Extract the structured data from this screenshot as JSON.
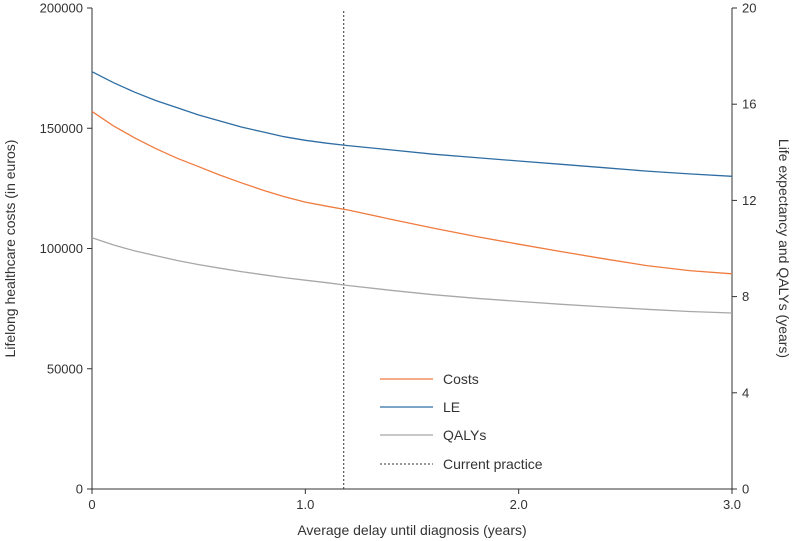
{
  "chart_data": {
    "type": "line",
    "title": "",
    "xlabel": "Average delay until diagnosis (years)",
    "ylabel_left": "Lifelong healthcare costs (in euros)",
    "ylabel_right": "Life expectancy and QALYs (years)",
    "xlim": [
      0,
      3.0
    ],
    "ylim_left": [
      0,
      200000
    ],
    "ylim_right": [
      0,
      20
    ],
    "x_ticks": [
      {
        "value": 0,
        "label": "0"
      },
      {
        "value": 1,
        "label": "1.0"
      },
      {
        "value": 2,
        "label": "2.0"
      },
      {
        "value": 3,
        "label": "3.0"
      }
    ],
    "y_left_ticks": [
      {
        "value": 0,
        "label": "0"
      },
      {
        "value": 50000,
        "label": "50000"
      },
      {
        "value": 100000,
        "label": "100000"
      },
      {
        "value": 150000,
        "label": "150000"
      },
      {
        "value": 200000,
        "label": "200000"
      }
    ],
    "y_right_ticks": [
      {
        "value": 0,
        "label": "0"
      },
      {
        "value": 4,
        "label": "4"
      },
      {
        "value": 8,
        "label": "8"
      },
      {
        "value": 12,
        "label": "12"
      },
      {
        "value": 16,
        "label": "16"
      },
      {
        "value": 20,
        "label": "20"
      }
    ],
    "grid": false,
    "legend_position": "bottom-center",
    "series": [
      {
        "name": "Costs",
        "axis": "left",
        "color": "#f07b3f",
        "x": [
          0,
          0.1,
          0.2,
          0.3,
          0.4,
          0.5,
          0.6,
          0.7,
          0.8,
          0.9,
          1.0,
          1.1,
          1.2,
          1.4,
          1.6,
          1.8,
          2.0,
          2.2,
          2.4,
          2.6,
          2.8,
          3.0
        ],
        "y": [
          157000,
          151000,
          146000,
          141500,
          137500,
          134000,
          130500,
          127300,
          124300,
          121600,
          119300,
          117600,
          116000,
          112200,
          108500,
          105000,
          101800,
          98700,
          95700,
          92900,
          90800,
          89500
        ]
      },
      {
        "name": "LE",
        "axis": "right",
        "color": "#2e6da4",
        "x": [
          0,
          0.1,
          0.2,
          0.3,
          0.4,
          0.5,
          0.6,
          0.7,
          0.8,
          0.9,
          1.0,
          1.1,
          1.2,
          1.4,
          1.6,
          1.8,
          2.0,
          2.2,
          2.4,
          2.6,
          2.8,
          3.0
        ],
        "y": [
          17.35,
          16.9,
          16.5,
          16.15,
          15.85,
          15.55,
          15.3,
          15.05,
          14.85,
          14.65,
          14.5,
          14.38,
          14.28,
          14.1,
          13.92,
          13.78,
          13.64,
          13.5,
          13.36,
          13.22,
          13.1,
          13.0
        ]
      },
      {
        "name": "QALYs",
        "axis": "right",
        "color": "#a8a8a8",
        "x": [
          0,
          0.1,
          0.2,
          0.3,
          0.4,
          0.5,
          0.6,
          0.7,
          0.8,
          0.9,
          1.0,
          1.1,
          1.2,
          1.4,
          1.6,
          1.8,
          2.0,
          2.2,
          2.4,
          2.6,
          2.8,
          3.0
        ],
        "y": [
          10.45,
          10.15,
          9.9,
          9.7,
          9.5,
          9.33,
          9.18,
          9.04,
          8.91,
          8.79,
          8.68,
          8.58,
          8.46,
          8.26,
          8.08,
          7.93,
          7.8,
          7.68,
          7.57,
          7.47,
          7.38,
          7.32
        ]
      }
    ],
    "reference_lines": [
      {
        "name": "Current practice",
        "x": 1.18,
        "style": "dotted",
        "color": "#333333"
      }
    ],
    "legend": [
      {
        "label": "Costs",
        "color": "#f07b3f",
        "style": "solid"
      },
      {
        "label": "LE",
        "color": "#2e6da4",
        "style": "solid"
      },
      {
        "label": "QALYs",
        "color": "#a8a8a8",
        "style": "solid"
      },
      {
        "label": "Current practice",
        "color": "#333333",
        "style": "dotted"
      }
    ]
  }
}
